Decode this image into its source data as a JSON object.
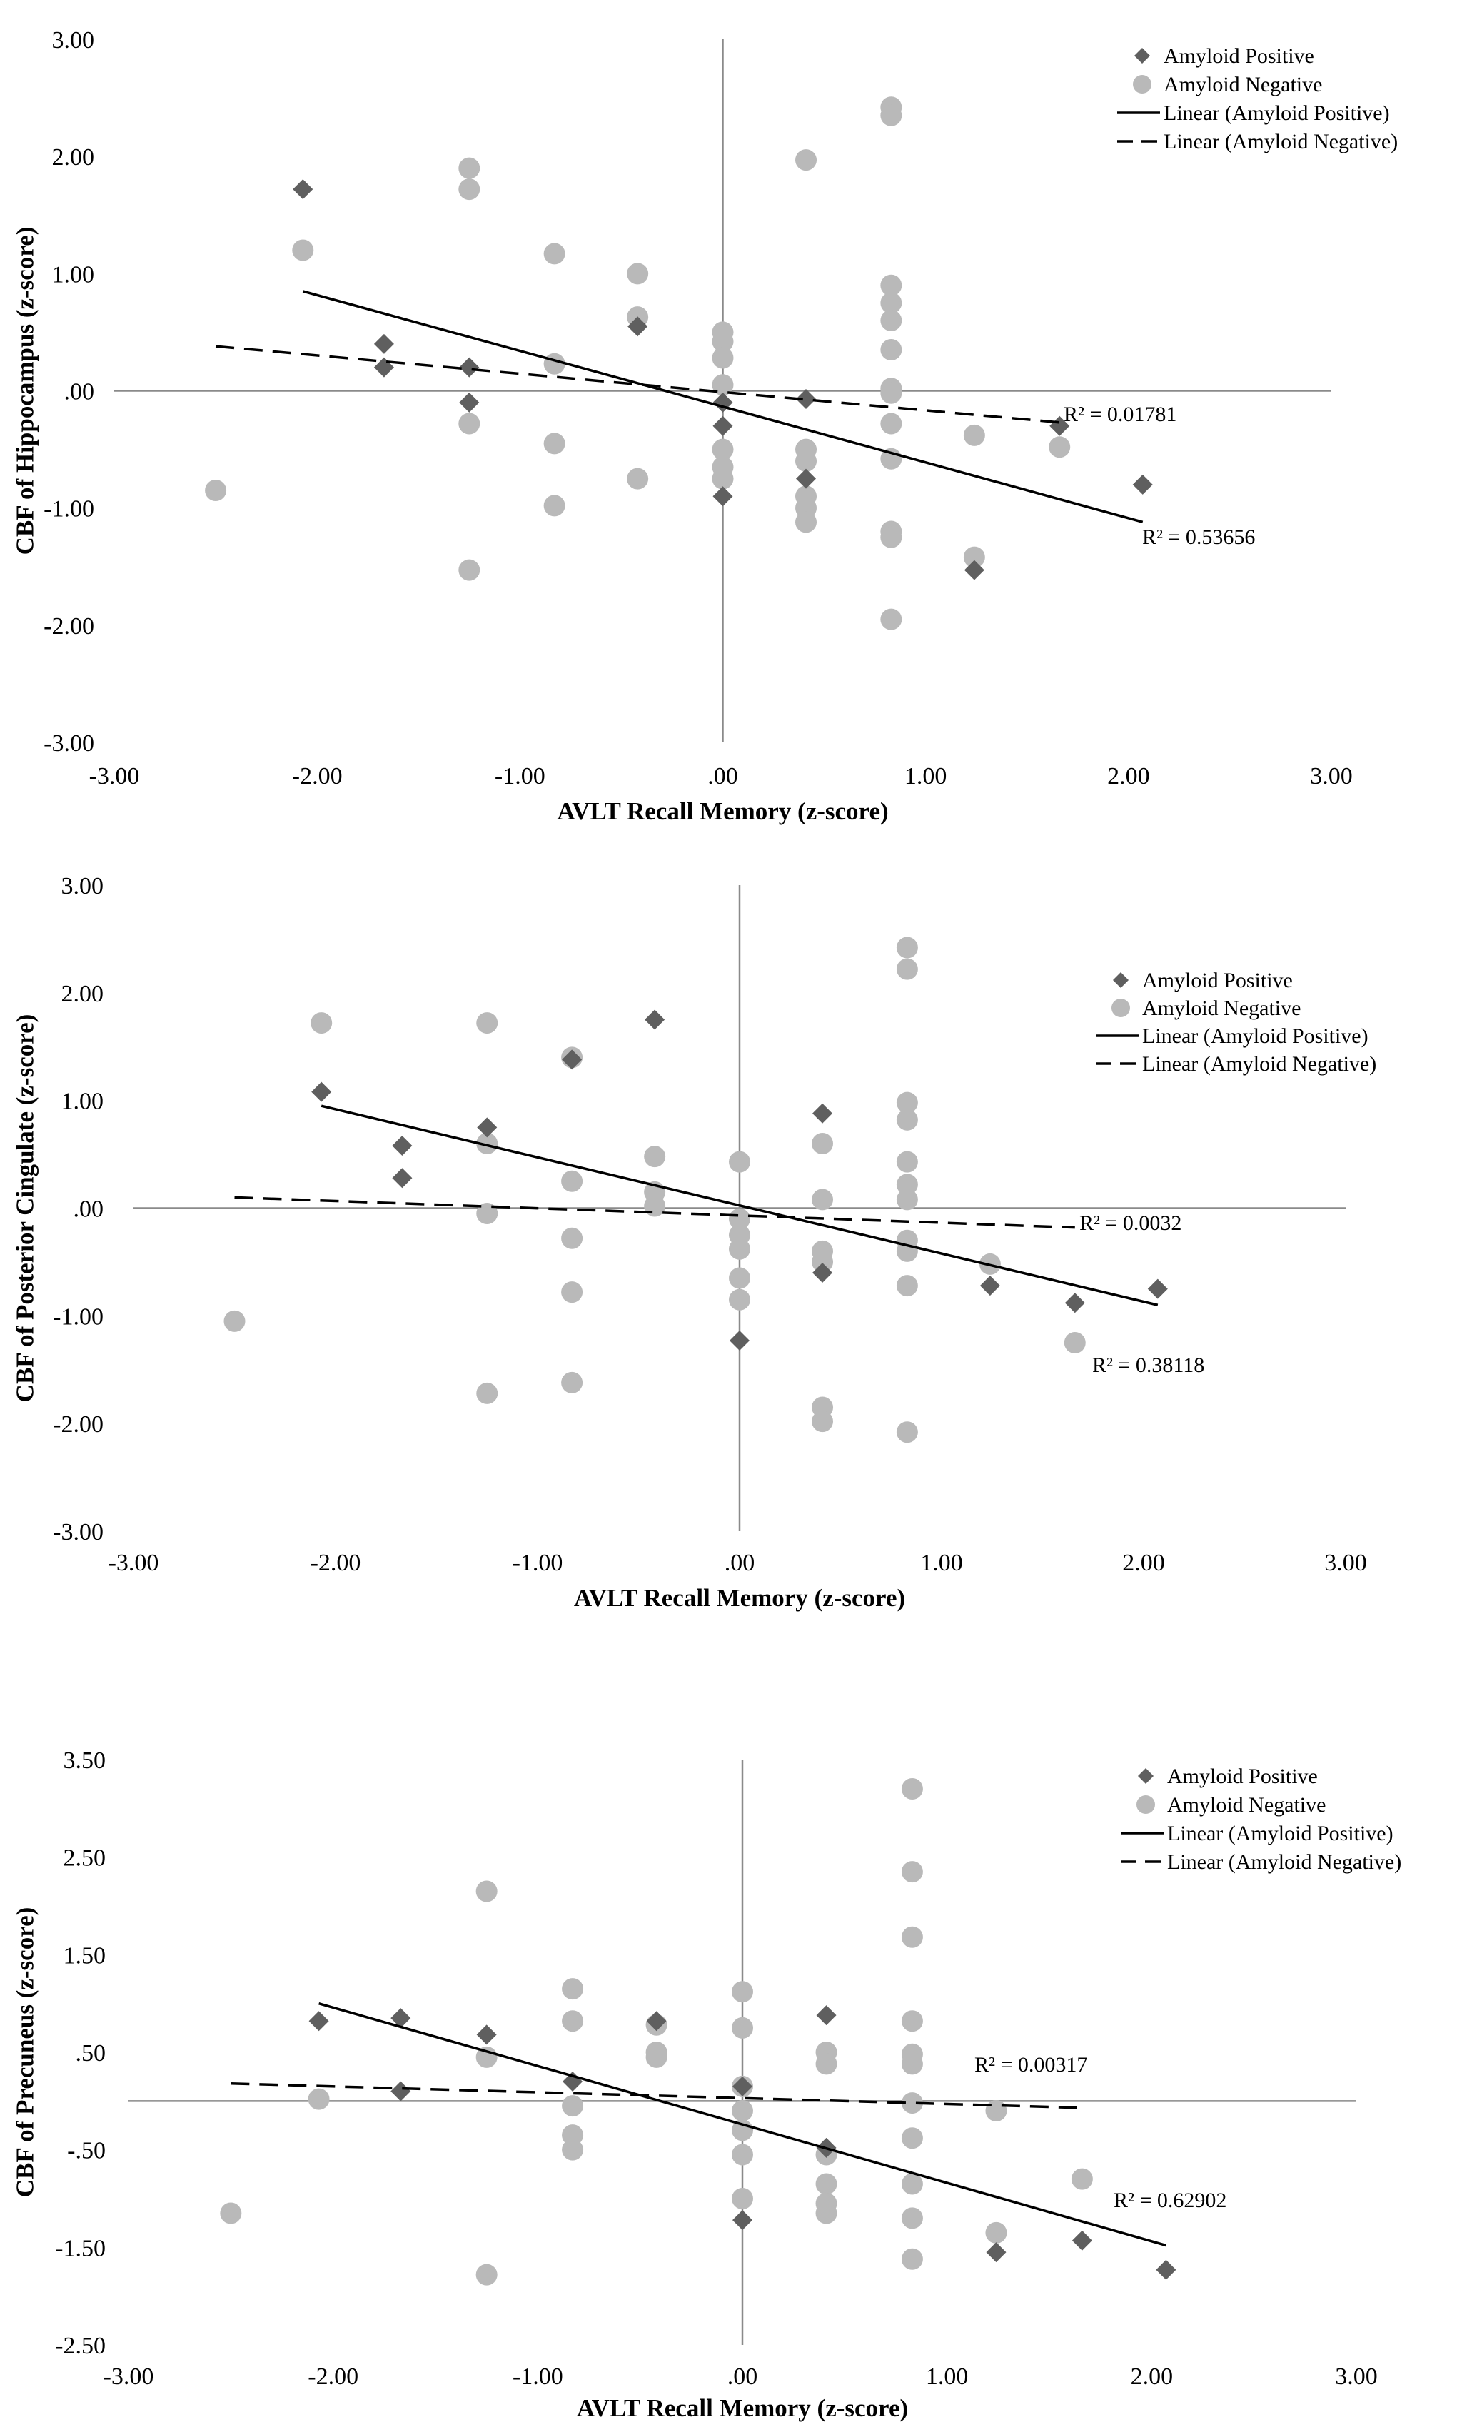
{
  "colors": {
    "positive": "#5f5f5f",
    "negative": "#b9b9b9",
    "axis": "#8a8a8a",
    "line": "#000000"
  },
  "chart_data": [
    {
      "type": "scatter",
      "title": "",
      "xlabel": "AVLT Recall Memory (z-score)",
      "ylabel": "CBF of Hippocampus  (z-score)",
      "xlim": [
        -3,
        3
      ],
      "ylim": [
        -3,
        3
      ],
      "x_ticks": [
        -3,
        -2,
        -1,
        0,
        1,
        2,
        3
      ],
      "x_tick_labels": [
        "-3.00",
        "-2.00",
        "-1.00",
        ".00",
        "1.00",
        "2.00",
        "3.00"
      ],
      "y_ticks": [
        3,
        2,
        1,
        0,
        -1,
        -2,
        -3
      ],
      "y_tick_labels": [
        "3.00",
        "2.00",
        "1.00",
        ".00",
        "-1.00",
        "-2.00",
        "-3.00"
      ],
      "legend": [
        "Amyloid Positive",
        "Amyloid Negative",
        "Linear  (Amyloid Positive)",
        "Linear  (Amyloid Negative)"
      ],
      "legend_position": "top-right",
      "series": [
        {
          "name": "Amyloid Positive",
          "marker": "diamond",
          "points": [
            [
              -2.07,
              1.72
            ],
            [
              -1.67,
              0.4
            ],
            [
              -1.67,
              0.2
            ],
            [
              -1.25,
              0.2
            ],
            [
              -1.25,
              -0.1
            ],
            [
              -0.42,
              0.55
            ],
            [
              0.0,
              -0.1
            ],
            [
              0.0,
              -0.3
            ],
            [
              0.0,
              -0.9
            ],
            [
              0.41,
              -0.07
            ],
            [
              0.41,
              -0.75
            ],
            [
              1.24,
              -1.53
            ],
            [
              1.66,
              -0.3
            ],
            [
              2.07,
              -0.8
            ]
          ]
        },
        {
          "name": "Amyloid Negative",
          "marker": "circle",
          "points": [
            [
              -2.5,
              -0.85
            ],
            [
              -2.07,
              1.2
            ],
            [
              -1.25,
              1.9
            ],
            [
              -1.25,
              1.72
            ],
            [
              -1.25,
              -0.28
            ],
            [
              -1.25,
              -1.53
            ],
            [
              -0.83,
              1.17
            ],
            [
              -0.83,
              0.23
            ],
            [
              -0.83,
              -0.45
            ],
            [
              -0.83,
              -0.98
            ],
            [
              -0.42,
              1.0
            ],
            [
              -0.42,
              0.63
            ],
            [
              -0.42,
              -0.75
            ],
            [
              0.0,
              0.5
            ],
            [
              0.0,
              0.42
            ],
            [
              0.0,
              0.28
            ],
            [
              0.0,
              0.05
            ],
            [
              0.0,
              -0.5
            ],
            [
              0.0,
              -0.65
            ],
            [
              0.0,
              -0.75
            ],
            [
              0.41,
              1.97
            ],
            [
              0.41,
              -0.5
            ],
            [
              0.41,
              -0.6
            ],
            [
              0.41,
              -0.9
            ],
            [
              0.41,
              -1.0
            ],
            [
              0.41,
              -1.12
            ],
            [
              0.83,
              2.42
            ],
            [
              0.83,
              2.35
            ],
            [
              0.83,
              0.9
            ],
            [
              0.83,
              0.75
            ],
            [
              0.83,
              0.6
            ],
            [
              0.83,
              0.35
            ],
            [
              0.83,
              0.02
            ],
            [
              0.83,
              -0.02
            ],
            [
              0.83,
              -0.28
            ],
            [
              0.83,
              -0.58
            ],
            [
              0.83,
              -1.2
            ],
            [
              0.83,
              -1.25
            ],
            [
              0.83,
              -1.95
            ],
            [
              1.24,
              -0.38
            ],
            [
              1.24,
              -1.42
            ],
            [
              1.66,
              -0.48
            ]
          ]
        }
      ],
      "trendlines": [
        {
          "name": "Linear  (Amyloid Positive)",
          "style": "solid",
          "x": [
            -2.07,
            2.07
          ],
          "y": [
            0.85,
            -1.12
          ],
          "r2_label": "R² = 0.53656"
        },
        {
          "name": "Linear  (Amyloid Negative)",
          "style": "dashed",
          "x": [
            -2.5,
            1.66
          ],
          "y": [
            0.38,
            -0.27
          ],
          "r2_label": "R² = 0.01781"
        }
      ]
    },
    {
      "type": "scatter",
      "title": "",
      "xlabel": "AVLT Recall Memory (z-score)",
      "ylabel": "CBF of Posterior Cingulate  (z-score)",
      "xlim": [
        -3,
        3
      ],
      "ylim": [
        -3,
        3
      ],
      "x_ticks": [
        -3,
        -2,
        -1,
        0,
        1,
        2,
        3
      ],
      "x_tick_labels": [
        "-3.00",
        "-2.00",
        "-1.00",
        ".00",
        "1.00",
        "2.00",
        "3.00"
      ],
      "y_ticks": [
        3,
        2,
        1,
        0,
        -1,
        -2,
        -3
      ],
      "y_tick_labels": [
        "3.00",
        "2.00",
        "1.00",
        ".00",
        "-1.00",
        "-2.00",
        "-3.00"
      ],
      "legend": [
        "Amyloid Positive",
        "Amyloid Negative",
        "Linear  (Amyloid Positive)",
        "Linear  (Amyloid Negative)"
      ],
      "legend_position": "top-right",
      "series": [
        {
          "name": "Amyloid Positive",
          "marker": "diamond",
          "points": [
            [
              -2.07,
              1.08
            ],
            [
              -1.67,
              0.58
            ],
            [
              -1.67,
              0.28
            ],
            [
              -1.25,
              0.75
            ],
            [
              -0.83,
              1.38
            ],
            [
              -0.42,
              1.75
            ],
            [
              0.0,
              -1.23
            ],
            [
              0.41,
              0.88
            ],
            [
              0.41,
              -0.6
            ],
            [
              1.24,
              -0.72
            ],
            [
              1.66,
              -0.88
            ],
            [
              2.07,
              -0.75
            ]
          ]
        },
        {
          "name": "Amyloid Negative",
          "marker": "circle",
          "points": [
            [
              -2.5,
              -1.05
            ],
            [
              -2.07,
              1.72
            ],
            [
              -1.25,
              1.72
            ],
            [
              -1.25,
              0.6
            ],
            [
              -1.25,
              -0.05
            ],
            [
              -1.25,
              -1.72
            ],
            [
              -0.83,
              1.4
            ],
            [
              -0.83,
              0.25
            ],
            [
              -0.83,
              -0.28
            ],
            [
              -0.83,
              -0.78
            ],
            [
              -0.83,
              -1.62
            ],
            [
              -0.42,
              0.48
            ],
            [
              -0.42,
              0.15
            ],
            [
              -0.42,
              0.02
            ],
            [
              0.0,
              0.43
            ],
            [
              0.0,
              -0.1
            ],
            [
              0.0,
              -0.25
            ],
            [
              0.0,
              -0.38
            ],
            [
              0.0,
              -0.65
            ],
            [
              0.0,
              -0.85
            ],
            [
              0.41,
              0.6
            ],
            [
              0.41,
              0.08
            ],
            [
              0.41,
              -0.4
            ],
            [
              0.41,
              -0.5
            ],
            [
              0.41,
              -1.85
            ],
            [
              0.41,
              -1.98
            ],
            [
              0.83,
              2.42
            ],
            [
              0.83,
              2.22
            ],
            [
              0.83,
              0.98
            ],
            [
              0.83,
              0.82
            ],
            [
              0.83,
              0.43
            ],
            [
              0.83,
              0.22
            ],
            [
              0.83,
              0.08
            ],
            [
              0.83,
              -0.3
            ],
            [
              0.83,
              -0.4
            ],
            [
              0.83,
              -0.72
            ],
            [
              0.83,
              -2.08
            ],
            [
              1.24,
              -0.52
            ],
            [
              1.66,
              -1.25
            ]
          ]
        }
      ],
      "trendlines": [
        {
          "name": "Linear  (Amyloid Positive)",
          "style": "solid",
          "x": [
            -2.07,
            2.07
          ],
          "y": [
            0.95,
            -0.9
          ],
          "r2_label": "R² = 0.38118"
        },
        {
          "name": "Linear  (Amyloid Negative)",
          "style": "dashed",
          "x": [
            -2.5,
            1.66
          ],
          "y": [
            0.1,
            -0.18
          ],
          "r2_label": "R² = 0.0032"
        }
      ]
    },
    {
      "type": "scatter",
      "title": "",
      "xlabel": "AVLT Recall Memory (z-score)",
      "ylabel": "CBF of Precuneus (z-score)",
      "xlim": [
        -3,
        3
      ],
      "ylim": [
        -2.5,
        3.5
      ],
      "x_ticks": [
        -3,
        -2,
        -1,
        0,
        1,
        2,
        3
      ],
      "x_tick_labels": [
        "-3.00",
        "-2.00",
        "-1.00",
        ".00",
        "1.00",
        "2.00",
        "3.00"
      ],
      "y_ticks": [
        3.5,
        2.5,
        1.5,
        0.5,
        -0.5,
        -1.5,
        -2.5
      ],
      "y_tick_labels": [
        "3.50",
        "2.50",
        "1.50",
        ".50",
        "-.50",
        "-1.50",
        "-2.50"
      ],
      "legend": [
        "Amyloid Positive",
        "Amyloid Negative",
        "Linear  (Amyloid Positive)",
        "Linear  (Amyloid Negative)"
      ],
      "legend_position": "top-right",
      "series": [
        {
          "name": "Amyloid Positive",
          "marker": "diamond",
          "points": [
            [
              -2.07,
              0.82
            ],
            [
              -1.67,
              0.85
            ],
            [
              -1.67,
              0.1
            ],
            [
              -1.25,
              0.68
            ],
            [
              -0.83,
              0.2
            ],
            [
              -0.42,
              0.82
            ],
            [
              0.0,
              0.15
            ],
            [
              0.0,
              -1.22
            ],
            [
              0.41,
              0.88
            ],
            [
              0.41,
              -0.48
            ],
            [
              1.24,
              -1.55
            ],
            [
              1.66,
              -1.43
            ],
            [
              2.07,
              -1.73
            ]
          ]
        },
        {
          "name": "Amyloid Negative",
          "marker": "circle",
          "points": [
            [
              -2.5,
              -1.15
            ],
            [
              -2.07,
              0.02
            ],
            [
              -1.25,
              2.15
            ],
            [
              -1.25,
              0.45
            ],
            [
              -1.25,
              -1.78
            ],
            [
              -0.83,
              1.15
            ],
            [
              -0.83,
              0.82
            ],
            [
              -0.83,
              -0.05
            ],
            [
              -0.83,
              -0.35
            ],
            [
              -0.83,
              -0.5
            ],
            [
              -0.42,
              0.78
            ],
            [
              -0.42,
              0.5
            ],
            [
              -0.42,
              0.45
            ],
            [
              0.0,
              1.12
            ],
            [
              0.0,
              0.75
            ],
            [
              0.0,
              0.15
            ],
            [
              0.0,
              -0.1
            ],
            [
              0.0,
              -0.3
            ],
            [
              0.0,
              -0.55
            ],
            [
              0.0,
              -1.0
            ],
            [
              0.41,
              0.5
            ],
            [
              0.41,
              0.38
            ],
            [
              0.41,
              -0.55
            ],
            [
              0.41,
              -0.85
            ],
            [
              0.41,
              -1.05
            ],
            [
              0.41,
              -1.15
            ],
            [
              0.83,
              3.2
            ],
            [
              0.83,
              2.35
            ],
            [
              0.83,
              1.68
            ],
            [
              0.83,
              0.82
            ],
            [
              0.83,
              0.48
            ],
            [
              0.83,
              0.38
            ],
            [
              0.83,
              -0.02
            ],
            [
              0.83,
              -0.38
            ],
            [
              0.83,
              -0.85
            ],
            [
              0.83,
              -1.2
            ],
            [
              0.83,
              -1.62
            ],
            [
              1.24,
              -0.1
            ],
            [
              1.24,
              -1.35
            ],
            [
              1.66,
              -0.8
            ]
          ]
        }
      ],
      "trendlines": [
        {
          "name": "Linear  (Amyloid Positive)",
          "style": "solid",
          "x": [
            -2.07,
            2.07
          ],
          "y": [
            1.0,
            -1.48
          ],
          "r2_label": "R² = 0.62902"
        },
        {
          "name": "Linear  (Amyloid Negative)",
          "style": "dashed",
          "x": [
            -2.5,
            1.66
          ],
          "y": [
            0.18,
            -0.07
          ],
          "r2_label": "R² = 0.00317"
        }
      ]
    }
  ]
}
